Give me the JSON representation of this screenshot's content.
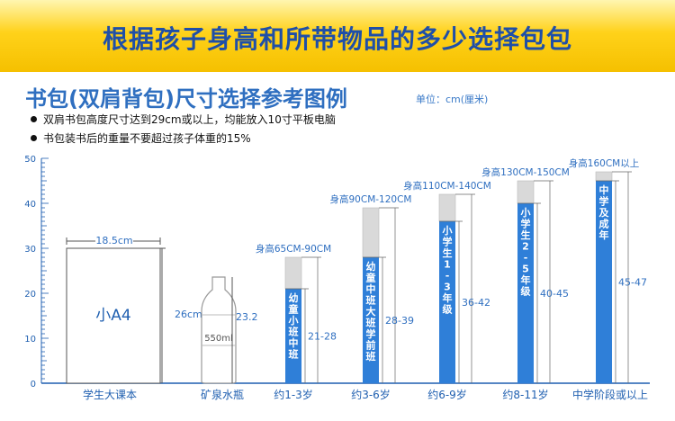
{
  "header": {
    "title": "根据孩子身高和所带物品的多少选择包包"
  },
  "section": {
    "title": "书包(双肩背包)尺寸选择参考图例",
    "unit": "单位：cm(厘米)"
  },
  "notes": [
    "双肩书包高度尺寸达到29cm或以上，均能放入10寸平板电脑",
    "书包装书后的重量不要超过孩子体重的15%"
  ],
  "chart_data": {
    "type": "bar",
    "ylim": [
      0,
      50
    ],
    "yticks": [
      0,
      10,
      20,
      30,
      40,
      50
    ],
    "items": [
      {
        "category": "学生大课本",
        "inner_text": "小A4",
        "width_label": "18.5cm",
        "height_label": "26cm",
        "value": 26
      },
      {
        "category": "矿泉水瓶",
        "inner_text": "550ml",
        "height_label": "23.2",
        "value": 23.2
      },
      {
        "category": "约1-3岁",
        "top_label": "身高65CM-90CM",
        "inner_text": "幼童小班中班",
        "range_label": "21-28",
        "low": 21,
        "high": 28
      },
      {
        "category": "约3-6岁",
        "top_label": "身高90CM-120CM",
        "inner_text": "幼童中班大班学前班",
        "range_label": "28-39",
        "low": 28,
        "high": 39
      },
      {
        "category": "约6-9岁",
        "top_label": "身高110CM-140CM",
        "inner_text": "小学生1-3年级",
        "range_label": "36-42",
        "low": 36,
        "high": 42
      },
      {
        "category": "约8-11岁",
        "top_label": "身高130CM-150CM",
        "inner_text": "小学生2-5年级",
        "range_label": "40-45",
        "low": 40,
        "high": 45
      },
      {
        "category": "中学阶段或以上",
        "top_label": "身高160CM以上",
        "inner_text": "中学及成年",
        "range_label": "45-47",
        "low": 45,
        "high": 47
      }
    ],
    "colors": {
      "bar": "#2f7fd8",
      "cap": "#d9d9d9",
      "axis": "#1f5fb0"
    }
  }
}
